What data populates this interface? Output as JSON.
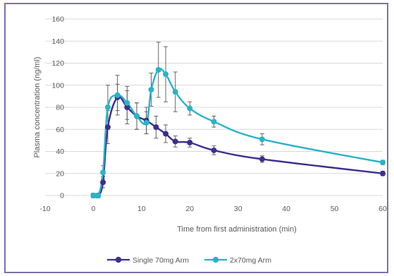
{
  "chart_data": {
    "type": "line",
    "title": "",
    "xlabel": "Time from first administration (min)",
    "ylabel": "Plasma concentration (ng/ml)",
    "xlim": [
      -10,
      60
    ],
    "ylim": [
      0,
      160
    ],
    "x_ticks": [
      -10,
      0,
      10,
      20,
      30,
      40,
      50,
      60
    ],
    "y_ticks": [
      0,
      20,
      40,
      60,
      80,
      100,
      120,
      140,
      160
    ],
    "grid": "horizontal",
    "legend": "bottom",
    "series": [
      {
        "name": "Single 70mg Arm",
        "color": "#3b2f8f",
        "points": [
          {
            "x": 0,
            "y": 0,
            "err": 2
          },
          {
            "x": 1,
            "y": 0,
            "err": 2
          },
          {
            "x": 2,
            "y": 12,
            "err": 5
          },
          {
            "x": 3,
            "y": 62,
            "err": 15
          },
          {
            "x": 5,
            "y": 89,
            "err": 12
          },
          {
            "x": 7,
            "y": 80,
            "err": 15
          },
          {
            "x": 9,
            "y": 72,
            "err": 12
          },
          {
            "x": 11,
            "y": 68,
            "err": 12
          },
          {
            "x": 13,
            "y": 62,
            "err": 10
          },
          {
            "x": 15,
            "y": 56,
            "err": 8
          },
          {
            "x": 17,
            "y": 49,
            "err": 5
          },
          {
            "x": 20,
            "y": 48,
            "err": 4
          },
          {
            "x": 25,
            "y": 41,
            "err": 4
          },
          {
            "x": 35,
            "y": 33,
            "err": 3
          },
          {
            "x": 60,
            "y": 20,
            "err": 2
          }
        ]
      },
      {
        "name": "2x70mg Arm",
        "color": "#29b3c9",
        "points": [
          {
            "x": 0,
            "y": 0,
            "err": 2
          },
          {
            "x": 1,
            "y": 0,
            "err": 2
          },
          {
            "x": 2,
            "y": 21,
            "err": 6
          },
          {
            "x": 3,
            "y": 80,
            "err": 20
          },
          {
            "x": 5,
            "y": 91,
            "err": 18
          },
          {
            "x": 7,
            "y": 84,
            "err": 15
          },
          {
            "x": 9,
            "y": 72,
            "err": 12
          },
          {
            "x": 11,
            "y": 66,
            "err": 10
          },
          {
            "x": 12,
            "y": 96,
            "err": 15
          },
          {
            "x": 13.5,
            "y": 114,
            "err": 25
          },
          {
            "x": 15,
            "y": 110,
            "err": 25
          },
          {
            "x": 17,
            "y": 94,
            "err": 18
          },
          {
            "x": 20,
            "y": 79,
            "err": 6
          },
          {
            "x": 25,
            "y": 67,
            "err": 5
          },
          {
            "x": 35,
            "y": 51,
            "err": 5
          },
          {
            "x": 60,
            "y": 30,
            "err": 2
          }
        ]
      }
    ]
  }
}
